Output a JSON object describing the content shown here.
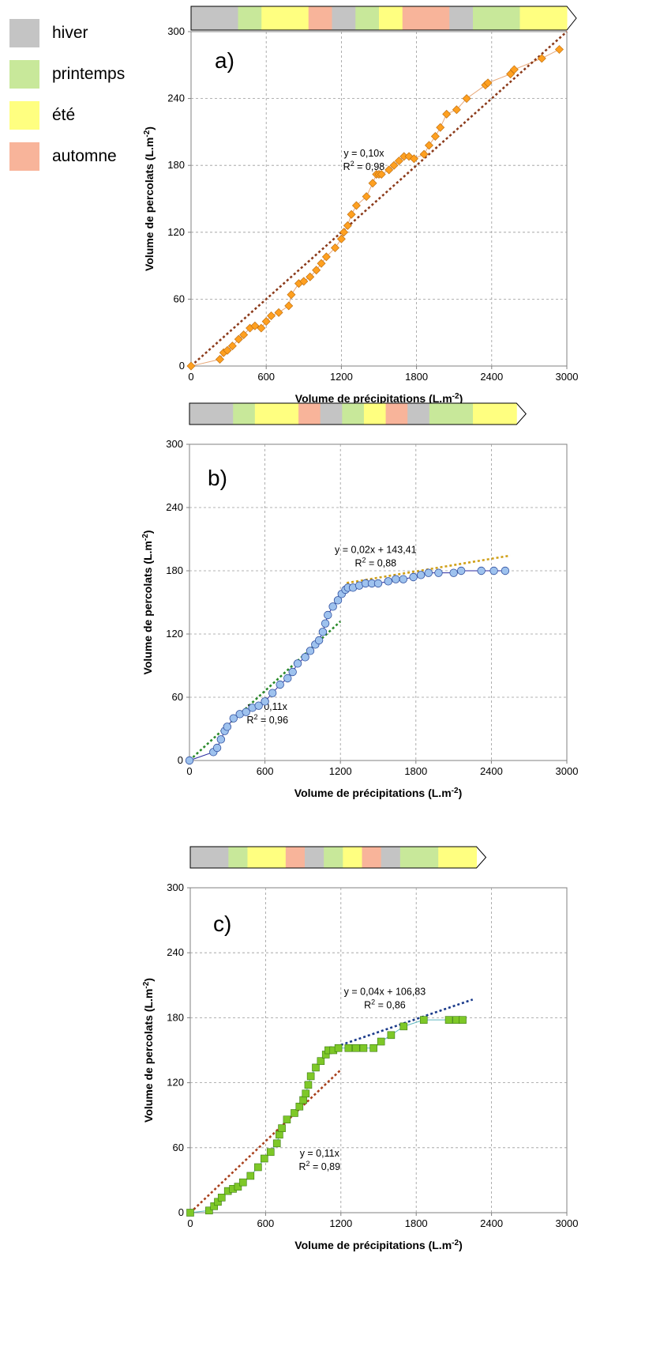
{
  "legend": {
    "items": [
      {
        "key": "hiver",
        "label": "hiver",
        "color": "#c4c4c4"
      },
      {
        "key": "printemps",
        "label": "printemps",
        "color": "#c8e89a"
      },
      {
        "key": "ete",
        "label": "été",
        "color": "#ffff80"
      },
      {
        "key": "automne",
        "label": "automne",
        "color": "#f8b49a"
      }
    ]
  },
  "chart_data": [
    {
      "type": "scatter",
      "panel_label": "a)",
      "xlabel": "Volume de précipitations (L.m",
      "xlabel_sup": "-2",
      "ylabel": "Volume de percolats (L.m",
      "ylabel_sup": "-2",
      "xlim": [
        0,
        3000
      ],
      "ylim": [
        0,
        300
      ],
      "x_ticks": [
        0,
        600,
        1200,
        1800,
        2400,
        3000
      ],
      "y_ticks": [
        0,
        60,
        120,
        180,
        240,
        300
      ],
      "grid": true,
      "marker": "diamond",
      "marker_color": "#ffa020",
      "line_color": "#e8a878",
      "season_bar": [
        "hiver",
        "hiver",
        "printemps",
        "ete",
        "ete",
        "automne",
        "hiver",
        "printemps",
        "ete",
        "automne",
        "automne",
        "hiver",
        "printemps",
        "printemps",
        "ete",
        "ete"
      ],
      "season_bar_end": 3000,
      "trend_lines": [
        {
          "color": "#8b3a1a",
          "x0": 0,
          "x1": 3000,
          "slope": 0.1,
          "intercept": 0,
          "equation": "y = 0,10x",
          "r2_label": "R",
          "r2_sup": "2",
          "r2_value": " = 0,98",
          "label_at": [
            1380,
            188
          ]
        }
      ],
      "series": [
        {
          "x": [
            0,
            230,
            260,
            290,
            330,
            380,
            420,
            470,
            510,
            560,
            600,
            640,
            700,
            780,
            800,
            860,
            900,
            950,
            1000,
            1040,
            1080,
            1150,
            1200,
            1220,
            1250,
            1280,
            1320,
            1400,
            1450,
            1480,
            1500,
            1520,
            1580,
            1620,
            1660,
            1700,
            1740,
            1780,
            1860,
            1900,
            1950,
            1990,
            2040,
            2120,
            2200,
            2350,
            2370,
            2550,
            2580,
            2800,
            2940
          ],
          "y": [
            0,
            6,
            12,
            14,
            18,
            24,
            28,
            34,
            36,
            34,
            40,
            45,
            48,
            54,
            64,
            74,
            76,
            80,
            86,
            92,
            98,
            106,
            114,
            120,
            126,
            136,
            144,
            152,
            164,
            172,
            172,
            172,
            176,
            180,
            184,
            188,
            188,
            186,
            190,
            198,
            206,
            214,
            226,
            230,
            240,
            252,
            254,
            262,
            266,
            276,
            284
          ]
        }
      ]
    },
    {
      "type": "scatter",
      "panel_label": "b)",
      "xlabel": "Volume de précipitations (L.m",
      "xlabel_sup": "-2",
      "ylabel": "Volume de percolats (L.m",
      "ylabel_sup": "-2",
      "xlim": [
        0,
        3000
      ],
      "ylim": [
        0,
        300
      ],
      "x_ticks": [
        0,
        600,
        1200,
        1800,
        2400,
        3000
      ],
      "y_ticks": [
        0,
        60,
        120,
        180,
        240,
        300
      ],
      "grid": true,
      "marker": "circle",
      "marker_color": "#9ec2ee",
      "line_color": "#2a2aa0",
      "season_bar": [
        "hiver",
        "hiver",
        "printemps",
        "ete",
        "ete",
        "automne",
        "hiver",
        "printemps",
        "ete",
        "automne",
        "hiver",
        "printemps",
        "printemps",
        "ete",
        "ete"
      ],
      "season_bar_end": 2600,
      "trend_lines": [
        {
          "color": "#2a8a2a",
          "x0": 0,
          "x1": 1200,
          "slope": 0.11,
          "intercept": 0,
          "equation": "y = 0,11x",
          "r2_label": "R",
          "r2_sup": "2",
          "r2_value": " = 0,96",
          "label_at": [
            620,
            48
          ]
        },
        {
          "color": "#d0a018",
          "x0": 1250,
          "x1": 2550,
          "slope": 0.02,
          "intercept": 143.41,
          "equation": "y = 0,02x + 143,41",
          "r2_label": "R",
          "r2_sup": "2",
          "r2_value": " = 0,88",
          "label_at": [
            1480,
            197
          ]
        }
      ],
      "series": [
        {
          "x": [
            0,
            190,
            220,
            250,
            280,
            300,
            350,
            400,
            450,
            500,
            550,
            600,
            660,
            720,
            780,
            820,
            860,
            920,
            960,
            1000,
            1030,
            1060,
            1080,
            1100,
            1140,
            1180,
            1210,
            1240,
            1260,
            1300,
            1350,
            1400,
            1450,
            1500,
            1580,
            1640,
            1700,
            1780,
            1840,
            1900,
            1980,
            2100,
            2160,
            2320,
            2420,
            2510
          ],
          "y": [
            0,
            8,
            12,
            20,
            28,
            32,
            40,
            44,
            46,
            50,
            52,
            56,
            64,
            72,
            78,
            84,
            92,
            98,
            104,
            110,
            114,
            122,
            130,
            138,
            146,
            152,
            158,
            162,
            164,
            164,
            166,
            168,
            168,
            168,
            170,
            172,
            172,
            174,
            176,
            178,
            178,
            178,
            180,
            180,
            180,
            180
          ]
        }
      ]
    },
    {
      "type": "scatter",
      "panel_label": "c)",
      "xlabel": "Volume de précipitations (L.m",
      "xlabel_sup": "-2",
      "ylabel": "Volume de percolats (L.m",
      "ylabel_sup": "-2",
      "xlim": [
        0,
        3000
      ],
      "ylim": [
        0,
        300
      ],
      "x_ticks": [
        0,
        600,
        1200,
        1800,
        2400,
        3000
      ],
      "y_ticks": [
        0,
        60,
        120,
        180,
        240,
        300
      ],
      "grid": true,
      "marker": "square",
      "marker_color": "#7ec828",
      "line_color": "#60b8c0",
      "season_bar": [
        "hiver",
        "hiver",
        "printemps",
        "ete",
        "ete",
        "automne",
        "hiver",
        "printemps",
        "ete",
        "automne",
        "hiver",
        "printemps",
        "printemps",
        "ete",
        "ete"
      ],
      "season_bar_end": 2280,
      "trend_lines": [
        {
          "color": "#a8401c",
          "x0": 0,
          "x1": 1200,
          "slope": 0.11,
          "intercept": 0,
          "equation": "y = 0,11x",
          "r2_label": "R",
          "r2_sup": "2",
          "r2_value": " = 0,89",
          "label_at": [
            1030,
            52
          ]
        },
        {
          "color": "#1a3a8a",
          "x0": 1200,
          "x1": 2250,
          "slope": 0.04,
          "intercept": 106.83,
          "equation": "y = 0,04x + 106,83",
          "r2_label": "R",
          "r2_sup": "2",
          "r2_value": " = 0,86",
          "label_at": [
            1550,
            201
          ]
        }
      ],
      "series": [
        {
          "x": [
            0,
            150,
            190,
            220,
            250,
            300,
            340,
            380,
            420,
            480,
            540,
            590,
            640,
            690,
            710,
            730,
            770,
            830,
            870,
            900,
            920,
            940,
            960,
            1000,
            1040,
            1080,
            1100,
            1140,
            1180,
            1260,
            1320,
            1380,
            1460,
            1520,
            1600,
            1700,
            1860,
            2060,
            2120,
            2170
          ],
          "y": [
            0,
            2,
            6,
            10,
            14,
            20,
            22,
            24,
            28,
            34,
            42,
            50,
            56,
            64,
            72,
            78,
            86,
            92,
            98,
            104,
            110,
            118,
            126,
            134,
            140,
            146,
            150,
            150,
            152,
            152,
            152,
            152,
            152,
            158,
            164,
            172,
            178,
            178,
            178,
            178
          ]
        }
      ]
    }
  ]
}
